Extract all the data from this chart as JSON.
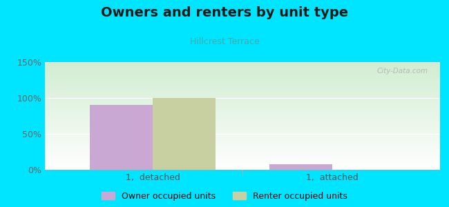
{
  "title": "Owners and renters by unit type",
  "subtitle": "Hillcrest Terrace",
  "categories": [
    "1,  detached",
    "1,  attached"
  ],
  "owner_values": [
    90,
    8
  ],
  "renter_values": [
    100,
    0
  ],
  "owner_color": "#c9a8d4",
  "renter_color": "#c8cfa0",
  "ylim": [
    0,
    150
  ],
  "yticks": [
    0,
    50,
    100,
    150
  ],
  "ytick_labels": [
    "0%",
    "50%",
    "100%",
    "150%"
  ],
  "background_outer": "#00e5ff",
  "bar_width": 0.35,
  "legend_labels": [
    "Owner occupied units",
    "Renter occupied units"
  ],
  "watermark": "City-Data.com",
  "title_fontsize": 14,
  "subtitle_fontsize": 9,
  "tick_fontsize": 9
}
